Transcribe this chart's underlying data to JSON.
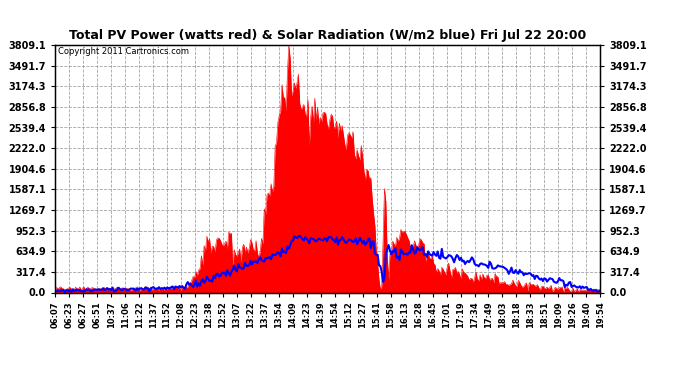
{
  "title": "Total PV Power (watts red) & Solar Radiation (W/m2 blue) Fri Jul 22 20:00",
  "copyright": "Copyright 2011 Cartronics.com",
  "background_color": "#ffffff",
  "plot_bg_color": "#ffffff",
  "grid_color": "#999999",
  "yticks": [
    0.0,
    317.4,
    634.9,
    952.3,
    1269.7,
    1587.1,
    1904.6,
    2222.0,
    2539.4,
    2856.8,
    3174.3,
    3491.7,
    3809.1
  ],
  "ymax": 3809.1,
  "pv_color": "red",
  "solar_color": "blue",
  "xtick_labels": [
    "06:07",
    "06:23",
    "06:27",
    "06:51",
    "10:37",
    "11:06",
    "11:22",
    "11:37",
    "11:52",
    "12:08",
    "12:23",
    "12:38",
    "12:52",
    "13:07",
    "13:22",
    "13:37",
    "13:54",
    "14:09",
    "14:23",
    "14:39",
    "14:54",
    "15:12",
    "15:27",
    "15:41",
    "15:58",
    "16:13",
    "16:28",
    "16:45",
    "17:01",
    "17:19",
    "17:34",
    "17:49",
    "18:03",
    "18:18",
    "18:33",
    "18:51",
    "19:09",
    "19:26",
    "19:40",
    "19:54"
  ]
}
